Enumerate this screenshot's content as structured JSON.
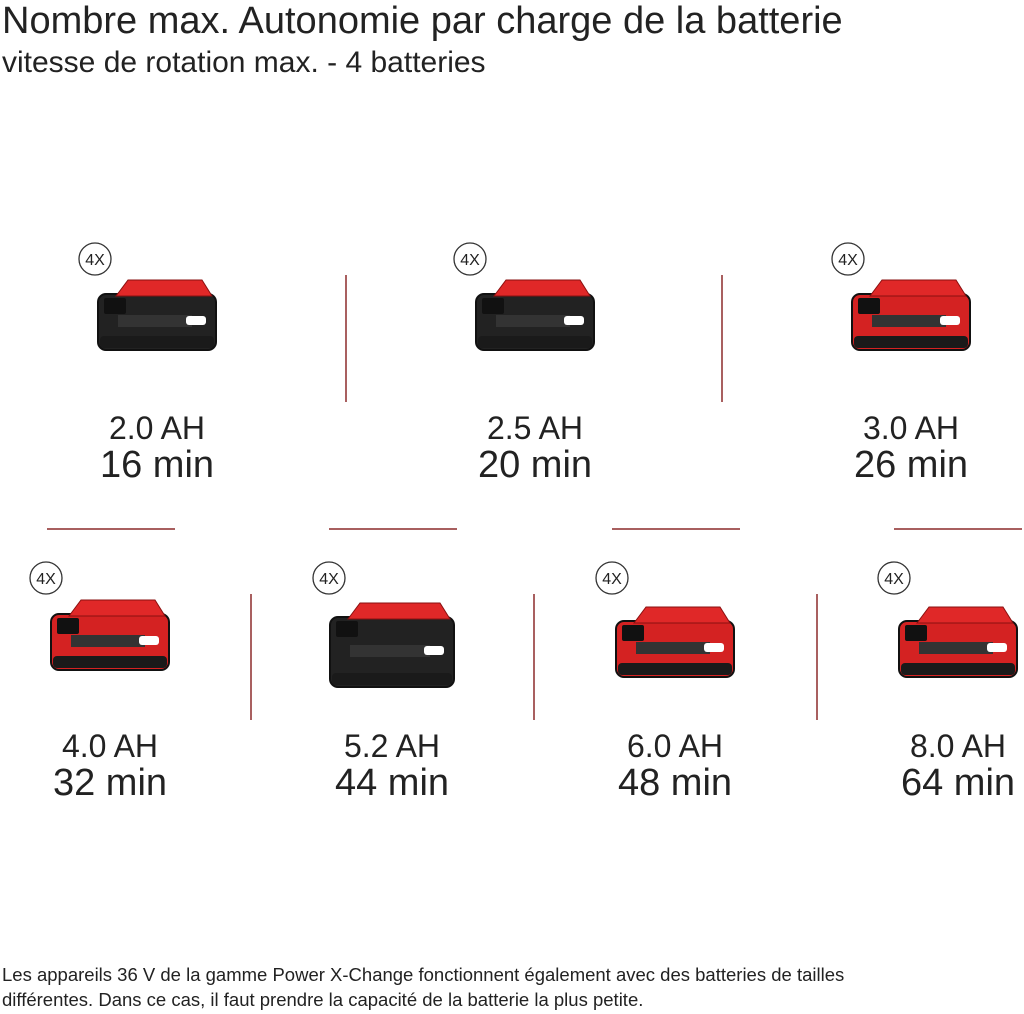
{
  "header": {
    "title": "Nombre max. Autonomie par charge de la batterie",
    "subtitle": "vitesse de rotation max. - 4 batteries"
  },
  "items": [
    {
      "badge": "4X",
      "capacity": "2.0 AH",
      "runtime": "16 min"
    },
    {
      "badge": "4X",
      "capacity": "2.5 AH",
      "runtime": "20 min"
    },
    {
      "badge": "4X",
      "capacity": "3.0 AH",
      "runtime": "26 min"
    },
    {
      "badge": "4X",
      "capacity": "4.0 AH",
      "runtime": "32 min"
    },
    {
      "badge": "4X",
      "capacity": "5.2 AH",
      "runtime": "44 min"
    },
    {
      "badge": "4X",
      "capacity": "6.0 AH",
      "runtime": "48 min"
    },
    {
      "badge": "4X",
      "capacity": "8.0 AH",
      "runtime": "64 min"
    }
  ],
  "footnote": [
    "Les appareils 36 V de la gamme Power X-Change fonctionnent également avec des batteries de tailles",
    "différentes. Dans ce cas, il faut prendre la capacité de la batterie la plus petite."
  ]
}
